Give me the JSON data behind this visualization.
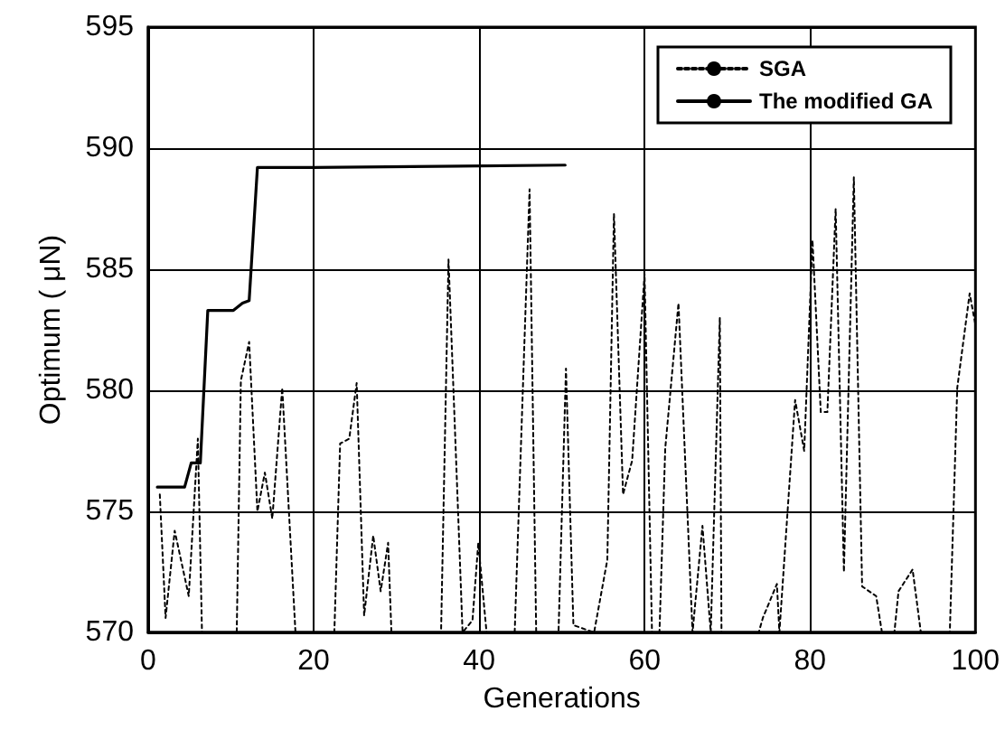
{
  "chart_data": {
    "type": "line",
    "xlabel": "Generations",
    "ylabel": "Optimum ( μN)",
    "xlim": [
      0,
      100
    ],
    "xticks": [
      0,
      20,
      40,
      60,
      80,
      100
    ],
    "ylim": [
      570,
      595
    ],
    "yticks": [
      570,
      575,
      580,
      585,
      590,
      595
    ],
    "grid": true,
    "legend": "top right",
    "marker": "none",
    "series": [
      {
        "name": "SGA",
        "color": "#000000",
        "line_style": "dotted",
        "x": [
          1.4,
          2.1,
          3.2,
          4.9,
          6.0,
          6.5,
          10.7,
          11.2,
          12.2,
          13.2,
          14.1,
          15.0,
          16.2,
          17.8,
          22.5,
          23.2,
          24.3,
          25.2,
          26.1,
          27.2,
          28.1,
          29.0,
          29.4,
          35.4,
          36.3,
          37.4,
          38.0,
          39.2,
          39.9,
          40.9,
          44.3,
          46.1,
          46.9,
          49.6,
          50.5,
          51.4,
          53.9,
          55.5,
          56.3,
          57.4,
          58.5,
          60.0,
          60.9,
          61.8,
          62.5,
          64.1,
          65.8,
          67.0,
          68.0,
          69.1,
          69.3,
          73.8,
          74.3,
          76.0,
          76.3,
          78.2,
          79.3,
          80.3,
          81.3,
          82.1,
          83.1,
          84.1,
          85.3,
          86.3,
          88.0,
          88.7,
          90.2,
          90.7,
          92.4,
          93.4,
          96.9,
          97.8,
          99.3,
          100
        ],
        "values": [
          575.7,
          570.6,
          574.2,
          571.5,
          578,
          570,
          570,
          580.4,
          582,
          575,
          576.6,
          574.7,
          580.1,
          570,
          570,
          577.8,
          578,
          580.3,
          570.7,
          574,
          571.7,
          573.7,
          570,
          570,
          585.4,
          575.5,
          570,
          570.5,
          573.7,
          570,
          570,
          588.3,
          570,
          570,
          580.9,
          570.3,
          570,
          573,
          587.3,
          575.7,
          577.1,
          584.8,
          570,
          570,
          577.6,
          583.6,
          570,
          574.4,
          570,
          583,
          570,
          570,
          570.6,
          572,
          570,
          579.6,
          577.5,
          586.2,
          579.1,
          579.1,
          587.5,
          572.5,
          588.8,
          571.9,
          571.5,
          570,
          570,
          571.7,
          572.6,
          570,
          570,
          580.1,
          584,
          582.7
        ]
      },
      {
        "name": "The modified GA",
        "color": "#000000",
        "line_style": "solid",
        "x": [
          1.1,
          4.4,
          5.2,
          6.3,
          7.2,
          10.3,
          11.4,
          12.2,
          13.2,
          20,
          50.4
        ],
        "values": [
          576,
          576,
          577,
          577,
          583.3,
          583.3,
          583.6,
          583.7,
          589.2,
          589.2,
          589.3
        ]
      }
    ]
  }
}
